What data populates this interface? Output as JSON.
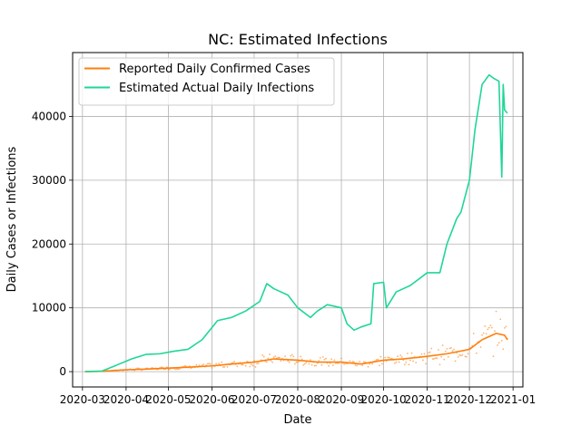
{
  "chart_data": {
    "type": "line",
    "title": "NC: Estimated Infections",
    "xlabel": "Date",
    "ylabel": "Daily Cases or Infections",
    "xlim": [
      "2020-02-23",
      "2021-01-08"
    ],
    "ylim": [
      -2400,
      50000
    ],
    "grid": true,
    "legend_position": "top-left",
    "x_ticks": [
      "2020-03-01",
      "2020-04-01",
      "2020-05-01",
      "2020-06-01",
      "2020-07-01",
      "2020-08-01",
      "2020-09-01",
      "2020-10-01",
      "2020-11-01",
      "2020-12-01",
      "2021-01-01"
    ],
    "x_tick_labels": [
      "2020-03",
      "2020-04",
      "2020-05",
      "2020-06",
      "2020-07",
      "2020-08",
      "2020-09",
      "2020-10",
      "2020-11",
      "2020-12",
      "2021-01"
    ],
    "y_ticks": [
      0,
      10000,
      20000,
      30000,
      40000
    ],
    "y_tick_labels": [
      "0",
      "10000",
      "20000",
      "30000",
      "40000"
    ],
    "series": [
      {
        "name": "Reported Daily Confirmed Cases",
        "color": "#ff7f0e",
        "x": [
          "2020-03-03",
          "2020-03-15",
          "2020-04-01",
          "2020-04-15",
          "2020-05-01",
          "2020-05-15",
          "2020-06-01",
          "2020-06-15",
          "2020-07-01",
          "2020-07-15",
          "2020-08-01",
          "2020-08-15",
          "2020-09-01",
          "2020-09-15",
          "2020-10-01",
          "2020-10-15",
          "2020-11-01",
          "2020-11-15",
          "2020-12-01",
          "2020-12-10",
          "2020-12-20",
          "2020-12-26",
          "2020-12-28"
        ],
        "y": [
          0,
          50,
          300,
          400,
          550,
          700,
          900,
          1200,
          1500,
          2000,
          1800,
          1500,
          1500,
          1200,
          1800,
          2000,
          2400,
          2800,
          3500,
          5000,
          6000,
          5700,
          5000
        ]
      },
      {
        "name": "Estimated Actual Daily Infections",
        "color": "#1fd795",
        "x": [
          "2020-03-03",
          "2020-03-15",
          "2020-03-25",
          "2020-04-05",
          "2020-04-15",
          "2020-04-25",
          "2020-05-05",
          "2020-05-15",
          "2020-05-25",
          "2020-06-05",
          "2020-06-15",
          "2020-06-25",
          "2020-07-05",
          "2020-07-10",
          "2020-07-15",
          "2020-07-25",
          "2020-08-01",
          "2020-08-10",
          "2020-08-15",
          "2020-08-22",
          "2020-09-01",
          "2020-09-05",
          "2020-09-10",
          "2020-09-15",
          "2020-09-22",
          "2020-09-24",
          "2020-10-01",
          "2020-10-03",
          "2020-10-10",
          "2020-10-20",
          "2020-11-01",
          "2020-11-10",
          "2020-11-15",
          "2020-11-22",
          "2020-11-25",
          "2020-12-01",
          "2020-12-05",
          "2020-12-10",
          "2020-12-15",
          "2020-12-18",
          "2020-12-22",
          "2020-12-24",
          "2020-12-25",
          "2020-12-26",
          "2020-12-28"
        ],
        "y": [
          0,
          100,
          1000,
          2000,
          2700,
          2800,
          3200,
          3500,
          5000,
          8000,
          8500,
          9500,
          11000,
          13800,
          13000,
          12000,
          10000,
          8500,
          9500,
          10500,
          10000,
          7500,
          6500,
          7000,
          7500,
          13800,
          14000,
          10000,
          12500,
          13500,
          15500,
          15500,
          20000,
          24000,
          25000,
          30000,
          38000,
          45000,
          46500,
          46000,
          45500,
          30500,
          45000,
          41000,
          40500
        ]
      }
    ]
  }
}
